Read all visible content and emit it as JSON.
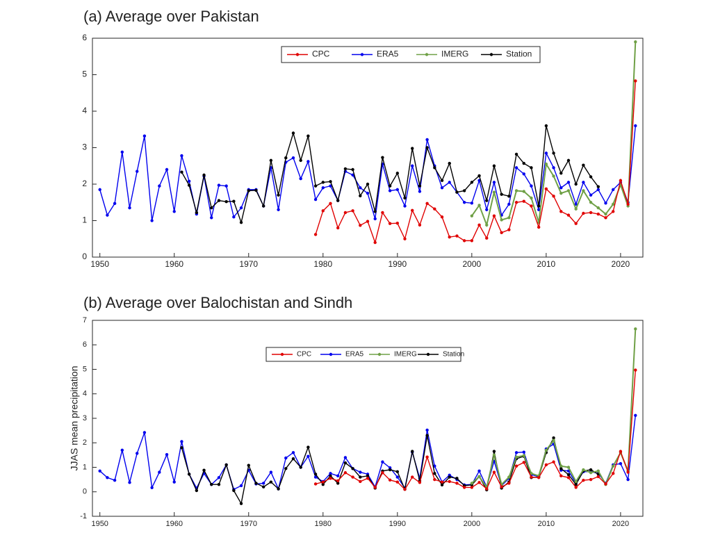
{
  "chart_data": [
    {
      "type": "line",
      "title": "(a) Average over Pakistan",
      "legend": "top-center",
      "xlim": [
        1949,
        2023
      ],
      "xticks": [
        1950,
        1960,
        1970,
        1980,
        1990,
        2000,
        2010,
        2020
      ],
      "ylim": [
        0,
        6
      ],
      "yticks": [
        0,
        1,
        2,
        3,
        4,
        5,
        6
      ],
      "x": [
        1950,
        1951,
        1952,
        1953,
        1954,
        1955,
        1956,
        1957,
        1958,
        1959,
        1960,
        1961,
        1962,
        1963,
        1964,
        1965,
        1966,
        1967,
        1968,
        1969,
        1970,
        1971,
        1972,
        1973,
        1974,
        1975,
        1976,
        1977,
        1978,
        1979,
        1980,
        1981,
        1982,
        1983,
        1984,
        1985,
        1986,
        1987,
        1988,
        1989,
        1990,
        1991,
        1992,
        1993,
        1994,
        1995,
        1996,
        1997,
        1998,
        1999,
        2000,
        2001,
        2002,
        2003,
        2004,
        2005,
        2006,
        2007,
        2008,
        2009,
        2010,
        2011,
        2012,
        2013,
        2014,
        2015,
        2016,
        2017,
        2018,
        2019,
        2020,
        2021,
        2022
      ],
      "series": [
        {
          "name": "CPC",
          "color": "#e00000",
          "values": [
            null,
            null,
            null,
            null,
            null,
            null,
            null,
            null,
            null,
            null,
            null,
            null,
            null,
            null,
            null,
            null,
            null,
            null,
            null,
            null,
            null,
            null,
            null,
            null,
            null,
            null,
            null,
            null,
            null,
            0.62,
            1.27,
            1.47,
            0.8,
            1.22,
            1.27,
            0.87,
            0.98,
            0.4,
            1.22,
            0.92,
            0.93,
            0.5,
            1.28,
            0.88,
            1.47,
            1.32,
            1.1,
            0.55,
            0.58,
            0.45,
            0.45,
            0.88,
            0.52,
            1.13,
            0.67,
            0.75,
            1.5,
            1.53,
            1.4,
            0.82,
            1.87,
            1.67,
            1.25,
            1.15,
            0.92,
            1.2,
            1.22,
            1.18,
            1.08,
            1.25,
            2.1,
            1.45,
            4.83
          ]
        },
        {
          "name": "ERA5",
          "color": "#0000ee",
          "values": [
            1.85,
            1.15,
            1.47,
            2.88,
            1.35,
            2.35,
            3.32,
            1.0,
            1.95,
            2.4,
            1.25,
            2.78,
            2.08,
            1.18,
            2.22,
            1.08,
            1.97,
            1.95,
            1.1,
            1.35,
            1.85,
            1.85,
            1.4,
            2.45,
            1.3,
            2.6,
            2.72,
            2.15,
            2.62,
            1.58,
            1.9,
            1.95,
            1.55,
            2.35,
            2.25,
            1.9,
            1.75,
            1.05,
            2.55,
            1.82,
            1.85,
            1.4,
            2.5,
            1.8,
            3.22,
            2.5,
            1.9,
            2.05,
            1.78,
            1.5,
            1.48,
            2.1,
            1.3,
            2.05,
            1.15,
            1.45,
            2.45,
            2.28,
            1.95,
            1.3,
            2.85,
            2.45,
            1.9,
            2.05,
            1.45,
            2.05,
            1.7,
            1.85,
            1.48,
            1.85,
            2.05,
            1.5,
            3.6
          ]
        },
        {
          "name": "IMERG",
          "color": "#6fa046",
          "values": [
            null,
            null,
            null,
            null,
            null,
            null,
            null,
            null,
            null,
            null,
            null,
            null,
            null,
            null,
            null,
            null,
            null,
            null,
            null,
            null,
            null,
            null,
            null,
            null,
            null,
            null,
            null,
            null,
            null,
            null,
            null,
            null,
            null,
            null,
            null,
            null,
            null,
            null,
            null,
            null,
            null,
            null,
            null,
            null,
            null,
            null,
            null,
            null,
            null,
            null,
            1.13,
            1.42,
            0.88,
            1.78,
            1.02,
            1.08,
            1.82,
            1.8,
            1.62,
            0.95,
            2.55,
            2.22,
            1.75,
            1.82,
            1.32,
            1.82,
            1.5,
            1.35,
            1.18,
            1.45,
            1.98,
            1.4,
            5.9
          ]
        },
        {
          "name": "Station",
          "color": "#000000",
          "values": [
            null,
            null,
            null,
            null,
            null,
            null,
            null,
            null,
            null,
            null,
            null,
            2.33,
            1.97,
            1.22,
            2.25,
            1.35,
            1.55,
            1.52,
            1.53,
            0.95,
            1.82,
            1.83,
            1.4,
            2.65,
            1.7,
            2.72,
            3.4,
            2.65,
            3.32,
            1.95,
            2.05,
            2.07,
            1.55,
            2.42,
            2.4,
            1.68,
            2.0,
            1.25,
            2.73,
            1.95,
            2.3,
            1.62,
            2.98,
            1.95,
            3.0,
            2.45,
            2.1,
            2.57,
            1.78,
            1.82,
            2.05,
            2.23,
            1.55,
            2.5,
            1.72,
            1.67,
            2.82,
            2.57,
            2.45,
            1.4,
            3.6,
            2.85,
            2.3,
            2.65,
            2.0,
            2.52,
            2.2,
            1.93,
            null,
            null,
            null,
            null,
            null
          ]
        }
      ]
    },
    {
      "type": "line",
      "title": "(b) Average over Balochistan and Sindh",
      "y_label": "JJAS mean precipitation",
      "legend": "top-center",
      "xlim": [
        1949,
        2023
      ],
      "xticks": [
        1950,
        1960,
        1970,
        1980,
        1990,
        2000,
        2010,
        2020
      ],
      "ylim": [
        -1,
        7
      ],
      "yticks": [
        -1,
        0,
        1,
        2,
        3,
        4,
        5,
        6,
        7
      ],
      "x": [
        1950,
        1951,
        1952,
        1953,
        1954,
        1955,
        1956,
        1957,
        1958,
        1959,
        1960,
        1961,
        1962,
        1963,
        1964,
        1965,
        1966,
        1967,
        1968,
        1969,
        1970,
        1971,
        1972,
        1973,
        1974,
        1975,
        1976,
        1977,
        1978,
        1979,
        1980,
        1981,
        1982,
        1983,
        1984,
        1985,
        1986,
        1987,
        1988,
        1989,
        1990,
        1991,
        1992,
        1993,
        1994,
        1995,
        1996,
        1997,
        1998,
        1999,
        2000,
        2001,
        2002,
        2003,
        2004,
        2005,
        2006,
        2007,
        2008,
        2009,
        2010,
        2011,
        2012,
        2013,
        2014,
        2015,
        2016,
        2017,
        2018,
        2019,
        2020,
        2021,
        2022
      ],
      "series": [
        {
          "name": "CPC",
          "color": "#e00000",
          "values": [
            null,
            null,
            null,
            null,
            null,
            null,
            null,
            null,
            null,
            null,
            null,
            null,
            null,
            null,
            null,
            null,
            null,
            null,
            null,
            null,
            null,
            null,
            null,
            null,
            null,
            null,
            null,
            null,
            null,
            0.32,
            0.4,
            0.55,
            0.45,
            0.78,
            0.6,
            0.42,
            0.55,
            0.18,
            0.78,
            0.48,
            0.4,
            0.1,
            0.6,
            0.38,
            1.42,
            0.5,
            0.4,
            0.42,
            0.35,
            0.18,
            0.18,
            0.38,
            0.12,
            0.8,
            0.2,
            0.35,
            1.05,
            1.2,
            0.6,
            0.58,
            1.1,
            1.22,
            0.65,
            0.58,
            0.18,
            0.47,
            0.5,
            0.62,
            0.32,
            0.75,
            1.65,
            0.8,
            4.97
          ]
        },
        {
          "name": "ERA5",
          "color": "#0000ee",
          "values": [
            0.85,
            0.58,
            0.47,
            1.7,
            0.38,
            1.57,
            2.42,
            0.17,
            0.8,
            1.52,
            0.4,
            2.05,
            0.72,
            0.15,
            0.75,
            0.3,
            0.58,
            1.1,
            0.1,
            0.25,
            0.88,
            0.32,
            0.35,
            0.8,
            0.12,
            1.38,
            1.6,
            1.0,
            1.45,
            0.6,
            0.42,
            0.75,
            0.65,
            1.4,
            0.95,
            0.8,
            0.72,
            0.2,
            1.22,
            0.98,
            0.6,
            0.15,
            1.62,
            0.55,
            2.52,
            1.05,
            0.4,
            0.68,
            0.5,
            0.28,
            0.3,
            0.85,
            0.2,
            1.25,
            0.25,
            0.55,
            1.6,
            1.62,
            0.7,
            0.62,
            1.75,
            1.95,
            0.88,
            0.85,
            0.35,
            0.82,
            0.82,
            0.75,
            0.35,
            1.1,
            1.15,
            0.5,
            3.12
          ]
        },
        {
          "name": "IMERG",
          "color": "#6fa046",
          "values": [
            null,
            null,
            null,
            null,
            null,
            null,
            null,
            null,
            null,
            null,
            null,
            null,
            null,
            null,
            null,
            null,
            null,
            null,
            null,
            null,
            null,
            null,
            null,
            null,
            null,
            null,
            null,
            null,
            null,
            null,
            null,
            null,
            null,
            null,
            null,
            null,
            null,
            null,
            null,
            null,
            null,
            null,
            null,
            null,
            null,
            null,
            null,
            null,
            null,
            null,
            0.35,
            0.62,
            0.18,
            1.5,
            0.3,
            0.6,
            1.42,
            1.48,
            0.75,
            0.65,
            1.7,
            2.1,
            1.05,
            1.0,
            0.42,
            0.9,
            0.78,
            0.85,
            0.3,
            1.05,
            1.6,
            0.85,
            6.65
          ]
        },
        {
          "name": "Station",
          "color": "#000000",
          "values": [
            null,
            null,
            null,
            null,
            null,
            null,
            null,
            null,
            null,
            null,
            null,
            1.8,
            0.72,
            0.05,
            0.88,
            0.3,
            0.3,
            1.1,
            0.05,
            -0.48,
            1.08,
            0.35,
            0.2,
            0.4,
            0.12,
            0.95,
            1.35,
            1.0,
            1.82,
            0.72,
            0.3,
            0.65,
            0.35,
            1.18,
            0.95,
            0.6,
            0.65,
            0.15,
            0.85,
            0.9,
            0.82,
            0.1,
            1.65,
            0.45,
            2.3,
            0.75,
            0.28,
            0.6,
            0.55,
            0.25,
            0.28,
            0.62,
            0.08,
            1.65,
            0.15,
            0.4,
            1.35,
            1.45,
            0.58,
            0.6,
            1.6,
            2.2,
            0.95,
            0.7,
            0.3,
            0.85,
            0.9,
            0.72,
            null,
            null,
            null,
            null,
            null
          ]
        }
      ]
    }
  ]
}
